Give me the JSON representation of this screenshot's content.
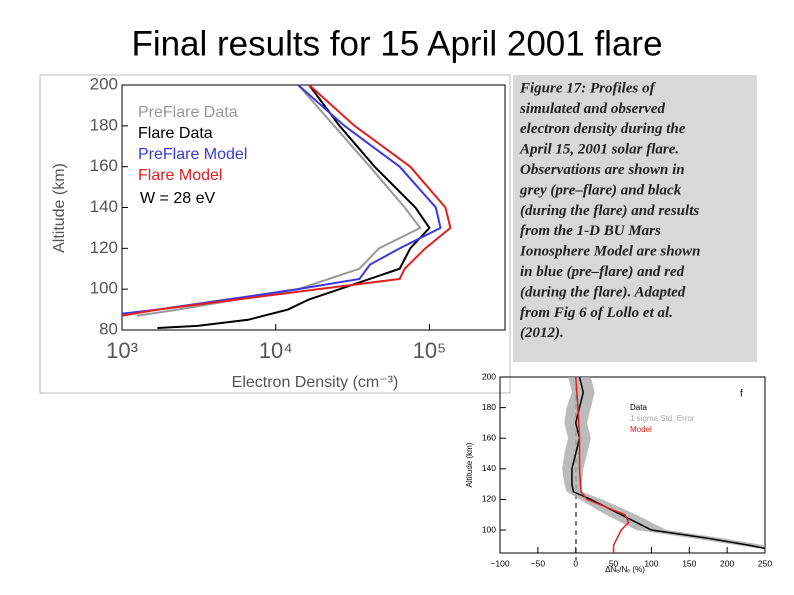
{
  "slide_title": "Final results for 15 April 2001 flare",
  "caption": [
    "Figure 17: Profiles of",
    "simulated and observed",
    "electron density during the",
    "April 15, 2001 solar flare.",
    "Observations are shown in",
    "grey (pre–flare) and black",
    "(during the flare) and results",
    "from the 1-D BU Mars",
    "Ionosphere Model are shown",
    "in blue (pre–flare) and red",
    "(during the flare). Adapted",
    "from Fig 6 of Lollo et al.",
    "(2012)."
  ],
  "chart_data": [
    {
      "type": "line",
      "xlabel": "Electron Density (cm⁻³)",
      "ylabel": "Altitude (km)",
      "xscale": "log",
      "xlim": [
        1000,
        310000
      ],
      "ylim": [
        80,
        200
      ],
      "xticks": [
        {
          "value": 1000,
          "label": "10³"
        },
        {
          "value": 10000,
          "label": "10⁴"
        },
        {
          "value": 100000,
          "label": "10⁵"
        }
      ],
      "yticks": [
        80,
        100,
        120,
        140,
        160,
        180,
        200
      ],
      "annotation": "W = 28 eV",
      "series": [
        {
          "name": "PreFlare Data",
          "color": "#999999",
          "x": [
            14000,
            24000,
            41000,
            69000,
            87000,
            47000,
            35000,
            14000,
            5700,
            2300,
            1250
          ],
          "y": [
            200,
            180,
            160,
            140,
            130,
            120,
            110,
            100,
            95,
            90,
            87
          ]
        },
        {
          "name": "Flare Data",
          "color": "#000000",
          "x": [
            16500,
            26000,
            44000,
            81000,
            100000,
            75000,
            64000,
            26000,
            16500,
            12000,
            6600,
            3100,
            1700
          ],
          "y": [
            200,
            180,
            160,
            140,
            130,
            120,
            110,
            100,
            95,
            90,
            85,
            82,
            81
          ]
        },
        {
          "name": "PreFlare Model",
          "color": "#3a3adf",
          "x": [
            14000,
            28000,
            64000,
            110000,
            118000,
            64000,
            41000,
            35000,
            14000,
            4900,
            1700,
            1000
          ],
          "y": [
            200,
            180,
            160,
            140,
            130,
            120,
            112,
            105,
            100,
            95,
            90,
            88
          ]
        },
        {
          "name": "Flare Model",
          "color": "#e02020",
          "x": [
            16500,
            32600,
            75000,
            127000,
            137000,
            94000,
            69000,
            64000,
            19000,
            5700,
            1700,
            1000
          ],
          "y": [
            200,
            180,
            160,
            140,
            130,
            120,
            110,
            105,
            100,
            95,
            90,
            87
          ]
        }
      ]
    },
    {
      "type": "line",
      "xlabel": "ΔNₑ/Nₑ (%)",
      "ylabel": "Altitude (km)",
      "xlim": [
        -100,
        250
      ],
      "ylim": [
        85,
        200
      ],
      "xticks": [
        {
          "value": -100,
          "label": "−100"
        },
        {
          "value": -50,
          "label": "−50"
        },
        0,
        50,
        100,
        150,
        200,
        250
      ],
      "yticks": [
        100,
        120,
        140,
        160,
        180,
        200
      ],
      "annotation": "f",
      "series": [
        {
          "name": "1 sigma Std. Error",
          "color": "#aaaaaa",
          "y": [
            200,
            190,
            180,
            170,
            160,
            150,
            140,
            130,
            125,
            120,
            110,
            100,
            95,
            90,
            88
          ],
          "lower": [
            -10,
            -5,
            -12,
            -15,
            -10,
            -15,
            -18,
            -15,
            -12,
            5,
            40,
            80,
            150,
            215,
            240
          ],
          "upper": [
            20,
            25,
            20,
            15,
            20,
            15,
            10,
            8,
            8,
            35,
            80,
            120,
            190,
            250,
            250
          ]
        },
        {
          "name": "Data",
          "color": "#000000",
          "x": [
            5,
            10,
            5,
            0,
            5,
            0,
            -5,
            -5,
            -3,
            20,
            60,
            100,
            170,
            230,
            250
          ],
          "y": [
            200,
            190,
            180,
            170,
            160,
            150,
            140,
            130,
            125,
            120,
            110,
            100,
            95,
            90,
            88
          ]
        },
        {
          "name": "Model",
          "color": "#e02020",
          "x": [
            0,
            3,
            5,
            5,
            7,
            15,
            40,
            65,
            70,
            60,
            55,
            50,
            50
          ],
          "y": [
            200,
            180,
            160,
            140,
            125,
            120,
            115,
            110,
            105,
            100,
            95,
            90,
            85
          ]
        }
      ]
    }
  ]
}
